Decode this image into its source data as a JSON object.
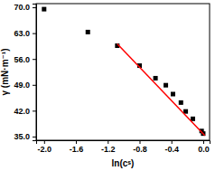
{
  "chart_data": {
    "type": "scatter",
    "x_label": "ln(cˢ)",
    "y_label": "γ (mN·m⁻¹)",
    "xlim": [
      -2.1,
      0.08
    ],
    "ylim": [
      34,
      71
    ],
    "xticks": [
      {
        "value": -2.0,
        "label": "-2.0"
      },
      {
        "value": -1.6,
        "label": "-1.6"
      },
      {
        "value": -1.2,
        "label": "-1.2"
      },
      {
        "value": -0.8,
        "label": "-0.8"
      },
      {
        "value": -0.4,
        "label": "-0.4"
      },
      {
        "value": 0.0,
        "label": "0.0"
      }
    ],
    "yticks": [
      {
        "value": 35,
        "label": "35.0"
      },
      {
        "value": 42,
        "label": "42.0"
      },
      {
        "value": 49,
        "label": "49.0"
      },
      {
        "value": 56,
        "label": "56.0"
      },
      {
        "value": 63,
        "label": "63.0"
      },
      {
        "value": 70,
        "label": "70.0"
      }
    ],
    "grid": false,
    "series": [
      {
        "type": "scatter",
        "color": "#000000",
        "marker": "square",
        "x": [
          -2.0,
          -1.45,
          -1.08,
          -0.8,
          -0.6,
          -0.47,
          -0.38,
          -0.28,
          -0.22,
          -0.13,
          -0.02,
          0.0
        ],
        "values": [
          69.5,
          63.3,
          59.6,
          54.2,
          50.8,
          48.9,
          46.5,
          44.2,
          41.8,
          39.8,
          36.5,
          35.8
        ]
      },
      {
        "type": "line",
        "color": "#ff0000",
        "line_style": "solid",
        "x": [
          -1.08,
          0.02
        ],
        "values": [
          60.1,
          35.3
        ]
      }
    ]
  }
}
